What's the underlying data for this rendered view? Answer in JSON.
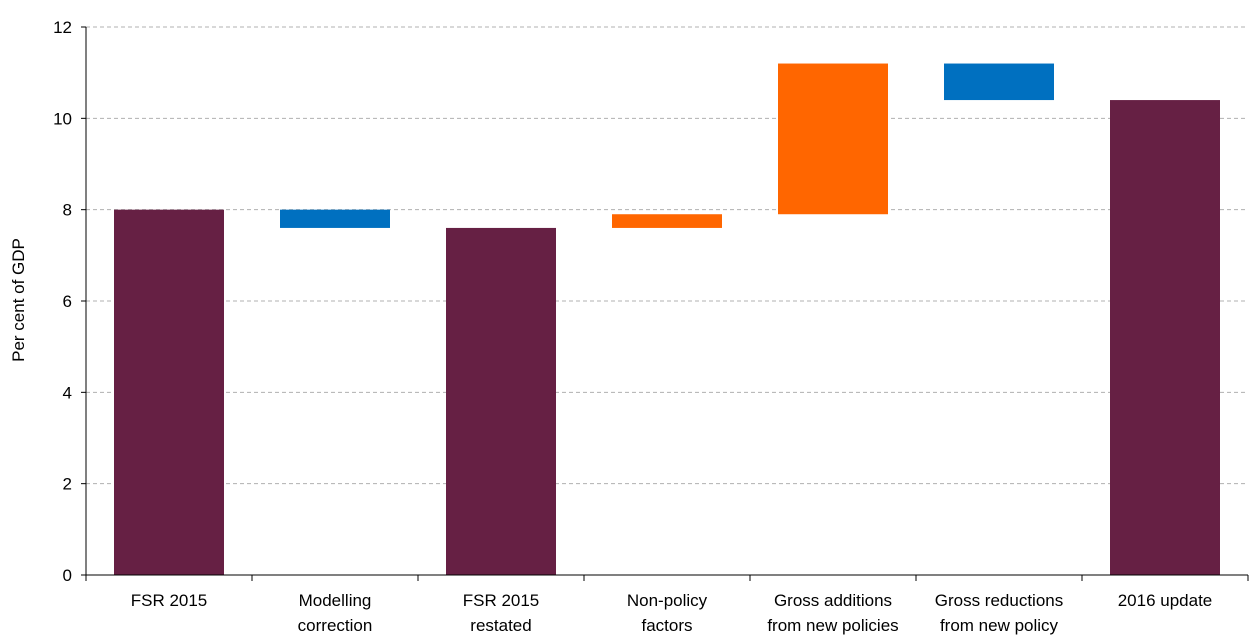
{
  "chart_data": {
    "type": "bar",
    "subtype": "waterfall",
    "ylabel": "Per cent of GDP",
    "ylim": [
      0,
      12
    ],
    "yticks": [
      0,
      2,
      4,
      6,
      8,
      10,
      12
    ],
    "ytick_labels": [
      "0",
      "2",
      "4",
      "6",
      "8",
      "10",
      "12"
    ],
    "grid": true,
    "categories": [
      [
        "FSR 2015"
      ],
      [
        "Modelling",
        "correction"
      ],
      [
        "FSR 2015",
        "restated"
      ],
      [
        "Non-policy",
        "factors"
      ],
      [
        "Gross additions",
        "from new policies"
      ],
      [
        "Gross reductions",
        "from new policy"
      ],
      [
        "2016 update"
      ]
    ],
    "bars": [
      {
        "kind": "total",
        "base": 0,
        "top": 8.0
      },
      {
        "kind": "decrease",
        "base": 7.6,
        "top": 8.0
      },
      {
        "kind": "total",
        "base": 0,
        "top": 7.6
      },
      {
        "kind": "increase",
        "base": 7.6,
        "top": 7.9
      },
      {
        "kind": "increase",
        "base": 7.9,
        "top": 11.2
      },
      {
        "kind": "decrease",
        "base": 10.4,
        "top": 11.2
      },
      {
        "kind": "total",
        "base": 0,
        "top": 10.4
      }
    ],
    "colors": {
      "total": "#662044",
      "decrease": "#0070c0",
      "increase": "#ff6600",
      "grid": "#b0b0b0",
      "axis": "#000000"
    }
  }
}
